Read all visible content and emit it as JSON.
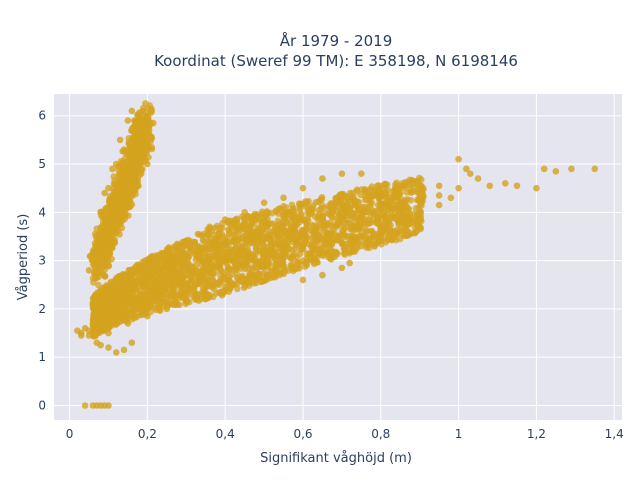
{
  "chart_data": {
    "type": "scatter",
    "title_lines": [
      "År 1979 - 2019",
      "Koordinat (Sweref 99 TM): E 358198, N 6198146"
    ],
    "xlabel": "Signifikant våghöjd (m)",
    "ylabel": "Vågperiod (s)",
    "xlim": [
      -0.04,
      1.42
    ],
    "ylim": [
      -0.3,
      6.45
    ],
    "xticks": [
      0,
      0.2,
      0.4,
      0.6,
      0.8,
      1,
      1.2,
      1.4
    ],
    "xtick_labels": [
      "0",
      "0,2",
      "0,4",
      "0,6",
      "0,8",
      "1",
      "1,2",
      "1,4"
    ],
    "yticks": [
      0,
      1,
      2,
      3,
      4,
      5,
      6
    ],
    "ytick_labels": [
      "0",
      "1",
      "2",
      "3",
      "4",
      "5",
      "6"
    ],
    "grid": true,
    "background": "#e5e5ef",
    "marker_color": "#d4a31f",
    "points": [
      [
        0.04,
        0.0
      ],
      [
        0.06,
        0.0
      ],
      [
        0.07,
        0.0
      ],
      [
        0.08,
        0.0
      ],
      [
        0.09,
        0.0
      ],
      [
        0.1,
        0.0
      ],
      [
        0.02,
        1.55
      ],
      [
        0.03,
        1.5
      ],
      [
        0.04,
        1.6
      ],
      [
        0.05,
        1.45
      ],
      [
        0.06,
        1.7
      ],
      [
        0.07,
        1.3
      ],
      [
        0.08,
        1.25
      ],
      [
        0.1,
        1.2
      ],
      [
        0.12,
        1.1
      ],
      [
        0.14,
        1.15
      ],
      [
        0.16,
        1.3
      ],
      [
        0.05,
        2.8
      ],
      [
        0.07,
        2.75
      ],
      [
        0.08,
        2.95
      ],
      [
        0.06,
        3.0
      ],
      [
        0.08,
        3.5
      ],
      [
        0.07,
        3.3
      ],
      [
        0.09,
        3.2
      ],
      [
        0.08,
        4.0
      ],
      [
        0.1,
        4.5
      ],
      [
        0.12,
        5.0
      ],
      [
        0.13,
        5.5
      ],
      [
        0.15,
        5.9
      ],
      [
        0.16,
        6.1
      ],
      [
        0.19,
        6.1
      ],
      [
        0.2,
        5.5
      ],
      [
        0.17,
        5.0
      ],
      [
        0.15,
        4.6
      ],
      [
        0.12,
        4.2
      ],
      [
        0.1,
        3.8
      ],
      [
        0.09,
        4.4
      ],
      [
        0.11,
        4.9
      ],
      [
        0.14,
        5.3
      ],
      [
        0.18,
        5.8
      ],
      [
        0.2,
        5.0
      ],
      [
        0.16,
        4.4
      ],
      [
        0.13,
        3.9
      ],
      [
        0.1,
        3.1
      ],
      [
        0.09,
        2.9
      ],
      [
        0.03,
        1.45
      ],
      [
        0.05,
        1.55
      ],
      [
        0.07,
        1.7
      ],
      [
        0.09,
        1.9
      ],
      [
        0.1,
        2.1
      ],
      [
        0.12,
        2.3
      ],
      [
        0.15,
        2.5
      ],
      [
        0.18,
        2.7
      ],
      [
        0.2,
        2.85
      ],
      [
        0.22,
        2.95
      ],
      [
        0.25,
        3.1
      ],
      [
        0.28,
        3.25
      ],
      [
        0.3,
        3.4
      ],
      [
        0.33,
        3.55
      ],
      [
        0.36,
        3.7
      ],
      [
        0.4,
        3.85
      ],
      [
        0.45,
        4.0
      ],
      [
        0.5,
        4.2
      ],
      [
        0.55,
        4.3
      ],
      [
        0.6,
        4.5
      ],
      [
        0.65,
        4.7
      ],
      [
        0.7,
        4.8
      ],
      [
        0.75,
        4.8
      ],
      [
        0.1,
        1.5
      ],
      [
        0.15,
        1.7
      ],
      [
        0.2,
        1.85
      ],
      [
        0.25,
        2.0
      ],
      [
        0.3,
        2.15
      ],
      [
        0.35,
        2.3
      ],
      [
        0.4,
        2.45
      ],
      [
        0.45,
        2.6
      ],
      [
        0.5,
        2.75
      ],
      [
        0.55,
        2.85
      ],
      [
        0.6,
        3.0
      ],
      [
        0.65,
        3.2
      ],
      [
        0.7,
        3.35
      ],
      [
        0.75,
        3.5
      ],
      [
        0.8,
        3.7
      ],
      [
        0.85,
        3.85
      ],
      [
        0.9,
        4.0
      ],
      [
        0.95,
        4.15
      ],
      [
        0.2,
        2.3
      ],
      [
        0.25,
        2.5
      ],
      [
        0.3,
        2.7
      ],
      [
        0.35,
        2.9
      ],
      [
        0.4,
        3.1
      ],
      [
        0.45,
        3.3
      ],
      [
        0.5,
        3.5
      ],
      [
        0.55,
        3.7
      ],
      [
        0.6,
        3.85
      ],
      [
        0.65,
        3.9
      ],
      [
        0.7,
        4.0
      ],
      [
        0.75,
        4.05
      ],
      [
        0.8,
        4.1
      ],
      [
        0.85,
        4.2
      ],
      [
        0.9,
        4.3
      ],
      [
        0.95,
        4.35
      ],
      [
        0.6,
        2.6
      ],
      [
        0.65,
        2.7
      ],
      [
        0.7,
        2.85
      ],
      [
        0.72,
        2.95
      ],
      [
        0.75,
        3.3
      ],
      [
        0.78,
        3.5
      ],
      [
        0.8,
        3.6
      ],
      [
        0.82,
        3.75
      ],
      [
        0.95,
        4.55
      ],
      [
        1.0,
        5.1
      ],
      [
        1.02,
        4.9
      ],
      [
        1.05,
        4.7
      ],
      [
        1.08,
        4.55
      ],
      [
        1.12,
        4.6
      ],
      [
        1.15,
        4.55
      ],
      [
        1.2,
        4.5
      ],
      [
        1.22,
        4.9
      ],
      [
        1.25,
        4.85
      ],
      [
        1.29,
        4.9
      ],
      [
        1.35,
        4.9
      ],
      [
        1.0,
        4.5
      ],
      [
        1.03,
        4.8
      ],
      [
        0.98,
        4.3
      ],
      [
        0.9,
        4.3
      ]
    ]
  }
}
